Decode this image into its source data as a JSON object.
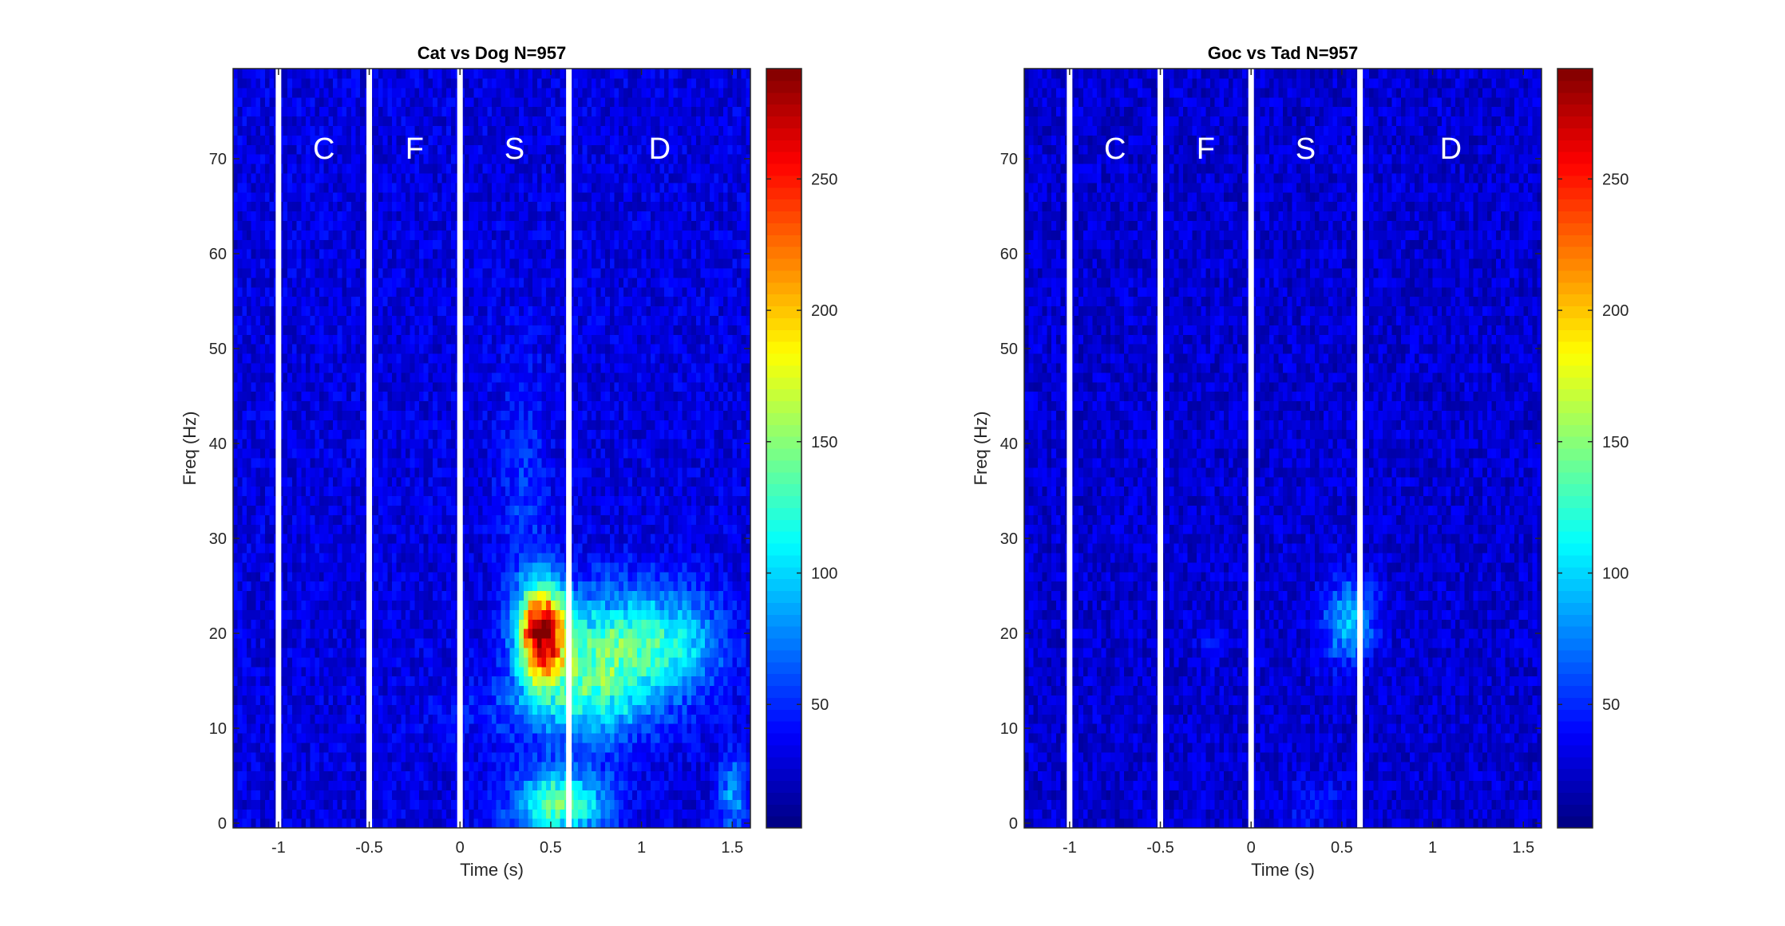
{
  "chart_data": [
    {
      "type": "heatmap",
      "title": "Cat vs Dog N=957",
      "xlabel": "Time (s)",
      "ylabel": "Freq (Hz)",
      "xlim": [
        -1.25,
        1.6
      ],
      "ylim": [
        -0.5,
        79.5
      ],
      "x_ticks": [
        -1,
        -0.5,
        0,
        0.5,
        1,
        1.5
      ],
      "x_tick_labels": [
        "-1",
        "-0.5",
        "0",
        "0.5",
        "1",
        "1.5"
      ],
      "y_ticks": [
        0,
        10,
        20,
        30,
        40,
        50,
        60,
        70
      ],
      "y_tick_labels": [
        "0",
        "10",
        "20",
        "30",
        "40",
        "50",
        "60",
        "70"
      ],
      "colorbar": {
        "colormap": "jet",
        "min": 3,
        "max": 292,
        "ticks": [
          50,
          100,
          150,
          200,
          250
        ],
        "tick_labels": [
          "50",
          "100",
          "150",
          "200",
          "250"
        ]
      },
      "epoch_boundaries_s": [
        -1,
        -0.5,
        0,
        0.6
      ],
      "epoch_labels": [
        {
          "label": "C",
          "x": -0.75
        },
        {
          "label": "F",
          "x": -0.25
        },
        {
          "label": "S",
          "x": 0.3
        },
        {
          "label": "D",
          "x": 1.1
        }
      ],
      "background_power": 30,
      "blobs": [
        {
          "t": 0.45,
          "f": 20,
          "st": 0.09,
          "sf": 3.5,
          "amp": 240
        },
        {
          "t": 0.75,
          "f": 17,
          "st": 0.22,
          "sf": 5,
          "amp": 95
        },
        {
          "t": 1.15,
          "f": 19,
          "st": 0.22,
          "sf": 4,
          "amp": 75
        },
        {
          "t": 0.55,
          "f": 2,
          "st": 0.18,
          "sf": 2.5,
          "amp": 110
        },
        {
          "t": 0.5,
          "f": 12,
          "st": 0.35,
          "sf": 3,
          "amp": 28
        },
        {
          "t": 0.35,
          "f": 35,
          "st": 0.1,
          "sf": 10,
          "amp": 22
        },
        {
          "t": 1.5,
          "f": 3,
          "st": 0.06,
          "sf": 3,
          "amp": 50
        }
      ]
    },
    {
      "type": "heatmap",
      "title": "Goc vs Tad N=957",
      "xlabel": "Time (s)",
      "ylabel": "Freq (Hz)",
      "xlim": [
        -1.25,
        1.6
      ],
      "ylim": [
        -0.5,
        79.5
      ],
      "x_ticks": [
        -1,
        -0.5,
        0,
        0.5,
        1,
        1.5
      ],
      "x_tick_labels": [
        "-1",
        "-0.5",
        "0",
        "0.5",
        "1",
        "1.5"
      ],
      "y_ticks": [
        0,
        10,
        20,
        30,
        40,
        50,
        60,
        70
      ],
      "y_tick_labels": [
        "0",
        "10",
        "20",
        "30",
        "40",
        "50",
        "60",
        "70"
      ],
      "colorbar": {
        "colormap": "jet",
        "min": 3,
        "max": 292,
        "ticks": [
          50,
          100,
          150,
          200,
          250
        ],
        "tick_labels": [
          "50",
          "100",
          "150",
          "200",
          "250"
        ]
      },
      "epoch_boundaries_s": [
        -1,
        -0.5,
        0,
        0.6
      ],
      "epoch_labels": [
        {
          "label": "C",
          "x": -0.75
        },
        {
          "label": "F",
          "x": -0.25
        },
        {
          "label": "S",
          "x": 0.3
        },
        {
          "label": "D",
          "x": 1.1
        }
      ],
      "background_power": 26,
      "blobs": [
        {
          "t": 0.5,
          "f": 21,
          "st": 0.08,
          "sf": 3,
          "amp": 55
        },
        {
          "t": 0.62,
          "f": 22,
          "st": 0.07,
          "sf": 3,
          "amp": 35
        },
        {
          "t": 0.35,
          "f": 2,
          "st": 0.12,
          "sf": 2,
          "amp": 18
        },
        {
          "t": -0.2,
          "f": 19,
          "st": 0.06,
          "sf": 1.5,
          "amp": 14
        }
      ]
    }
  ]
}
